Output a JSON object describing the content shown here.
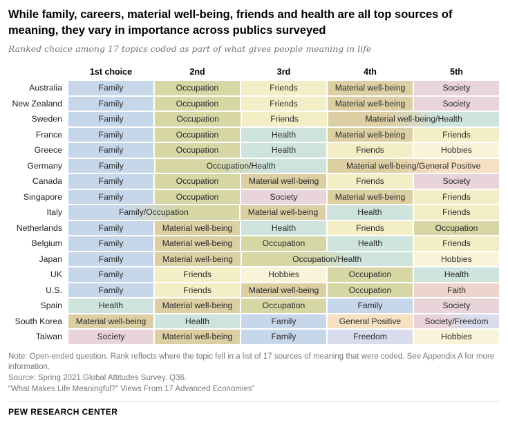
{
  "header": {
    "title": "While family, careers, material well-being, friends and health are all top sources of meaning, they vary in importance across publics surveyed",
    "subtitle": "Ranked choice among 17 topics coded as part of what gives people meaning in life"
  },
  "chart_data": {
    "type": "table",
    "columns": [
      "1st choice",
      "2nd",
      "3rd",
      "4th",
      "5th"
    ],
    "palette": {
      "Family": "#c7d7ea",
      "Occupation": "#d7d6a5",
      "Friends": "#f4eec6",
      "Material well-being": "#dccfa3",
      "Society": "#e9d4d9",
      "Health": "#cde3db",
      "Hobbies": "#f8f3d9",
      "Faith": "#edd5cb",
      "Freedom": "#d8dcec",
      "General Positive": "#f6e0c3"
    },
    "rows": [
      {
        "country": "Australia",
        "cells": [
          {
            "label": "Family",
            "span": 1,
            "topics": [
              "Family"
            ]
          },
          {
            "label": "Occupation",
            "span": 1,
            "topics": [
              "Occupation"
            ]
          },
          {
            "label": "Friends",
            "span": 1,
            "topics": [
              "Friends"
            ]
          },
          {
            "label": "Material well-being",
            "span": 1,
            "topics": [
              "Material well-being"
            ]
          },
          {
            "label": "Society",
            "span": 1,
            "topics": [
              "Society"
            ]
          }
        ]
      },
      {
        "country": "New Zealand",
        "cells": [
          {
            "label": "Family",
            "span": 1,
            "topics": [
              "Family"
            ]
          },
          {
            "label": "Occupation",
            "span": 1,
            "topics": [
              "Occupation"
            ]
          },
          {
            "label": "Friends",
            "span": 1,
            "topics": [
              "Friends"
            ]
          },
          {
            "label": "Material well-being",
            "span": 1,
            "topics": [
              "Material well-being"
            ]
          },
          {
            "label": "Society",
            "span": 1,
            "topics": [
              "Society"
            ]
          }
        ]
      },
      {
        "country": "Sweden",
        "cells": [
          {
            "label": "Family",
            "span": 1,
            "topics": [
              "Family"
            ]
          },
          {
            "label": "Occupation",
            "span": 1,
            "topics": [
              "Occupation"
            ]
          },
          {
            "label": "Friends",
            "span": 1,
            "topics": [
              "Friends"
            ]
          },
          {
            "label": "Material well-being/Health",
            "span": 2,
            "topics": [
              "Material well-being",
              "Health"
            ]
          }
        ]
      },
      {
        "country": "France",
        "cells": [
          {
            "label": "Family",
            "span": 1,
            "topics": [
              "Family"
            ]
          },
          {
            "label": "Occupation",
            "span": 1,
            "topics": [
              "Occupation"
            ]
          },
          {
            "label": "Health",
            "span": 1,
            "topics": [
              "Health"
            ]
          },
          {
            "label": "Material well-being",
            "span": 1,
            "topics": [
              "Material well-being"
            ]
          },
          {
            "label": "Friends",
            "span": 1,
            "topics": [
              "Friends"
            ]
          }
        ]
      },
      {
        "country": "Greece",
        "cells": [
          {
            "label": "Family",
            "span": 1,
            "topics": [
              "Family"
            ]
          },
          {
            "label": "Occupation",
            "span": 1,
            "topics": [
              "Occupation"
            ]
          },
          {
            "label": "Health",
            "span": 1,
            "topics": [
              "Health"
            ]
          },
          {
            "label": "Friends",
            "span": 1,
            "topics": [
              "Friends"
            ]
          },
          {
            "label": "Hobbies",
            "span": 1,
            "topics": [
              "Hobbies"
            ]
          }
        ]
      },
      {
        "country": "Germany",
        "cells": [
          {
            "label": "Family",
            "span": 1,
            "topics": [
              "Family"
            ]
          },
          {
            "label": "Occupation/Health",
            "span": 2,
            "topics": [
              "Occupation",
              "Health"
            ]
          },
          {
            "label": "Material well-being/General Positive",
            "span": 2,
            "topics": [
              "Material well-being",
              "General Positive"
            ]
          }
        ]
      },
      {
        "country": "Canada",
        "cells": [
          {
            "label": "Family",
            "span": 1,
            "topics": [
              "Family"
            ]
          },
          {
            "label": "Occupation",
            "span": 1,
            "topics": [
              "Occupation"
            ]
          },
          {
            "label": "Material well-being",
            "span": 1,
            "topics": [
              "Material well-being"
            ]
          },
          {
            "label": "Friends",
            "span": 1,
            "topics": [
              "Friends"
            ]
          },
          {
            "label": "Society",
            "span": 1,
            "topics": [
              "Society"
            ]
          }
        ]
      },
      {
        "country": "Singapore",
        "cells": [
          {
            "label": "Family",
            "span": 1,
            "topics": [
              "Family"
            ]
          },
          {
            "label": "Occupation",
            "span": 1,
            "topics": [
              "Occupation"
            ]
          },
          {
            "label": "Society",
            "span": 1,
            "topics": [
              "Society"
            ]
          },
          {
            "label": "Material well-being",
            "span": 1,
            "topics": [
              "Material well-being"
            ]
          },
          {
            "label": "Friends",
            "span": 1,
            "topics": [
              "Friends"
            ]
          }
        ]
      },
      {
        "country": "Italy",
        "cells": [
          {
            "label": "Family/Occupation",
            "span": 2,
            "topics": [
              "Family",
              "Occupation"
            ]
          },
          {
            "label": "Material well-being",
            "span": 1,
            "topics": [
              "Material well-being"
            ]
          },
          {
            "label": "Health",
            "span": 1,
            "topics": [
              "Health"
            ]
          },
          {
            "label": "Friends",
            "span": 1,
            "topics": [
              "Friends"
            ]
          }
        ]
      },
      {
        "country": "Netherlands",
        "cells": [
          {
            "label": "Family",
            "span": 1,
            "topics": [
              "Family"
            ]
          },
          {
            "label": "Material well-being",
            "span": 1,
            "topics": [
              "Material well-being"
            ]
          },
          {
            "label": "Health",
            "span": 1,
            "topics": [
              "Health"
            ]
          },
          {
            "label": "Friends",
            "span": 1,
            "topics": [
              "Friends"
            ]
          },
          {
            "label": "Occupation",
            "span": 1,
            "topics": [
              "Occupation"
            ]
          }
        ]
      },
      {
        "country": "Belgium",
        "cells": [
          {
            "label": "Family",
            "span": 1,
            "topics": [
              "Family"
            ]
          },
          {
            "label": "Material well-being",
            "span": 1,
            "topics": [
              "Material well-being"
            ]
          },
          {
            "label": "Occupation",
            "span": 1,
            "topics": [
              "Occupation"
            ]
          },
          {
            "label": "Health",
            "span": 1,
            "topics": [
              "Health"
            ]
          },
          {
            "label": "Friends",
            "span": 1,
            "topics": [
              "Friends"
            ]
          }
        ]
      },
      {
        "country": "Japan",
        "cells": [
          {
            "label": "Family",
            "span": 1,
            "topics": [
              "Family"
            ]
          },
          {
            "label": "Material well-being",
            "span": 1,
            "topics": [
              "Material well-being"
            ]
          },
          {
            "label": "Occupation/Health",
            "span": 2,
            "topics": [
              "Occupation",
              "Health"
            ]
          },
          {
            "label": "Hobbies",
            "span": 1,
            "topics": [
              "Hobbies"
            ]
          }
        ]
      },
      {
        "country": "UK",
        "cells": [
          {
            "label": "Family",
            "span": 1,
            "topics": [
              "Family"
            ]
          },
          {
            "label": "Friends",
            "span": 1,
            "topics": [
              "Friends"
            ]
          },
          {
            "label": "Hobbies",
            "span": 1,
            "topics": [
              "Hobbies"
            ]
          },
          {
            "label": "Occupation",
            "span": 1,
            "topics": [
              "Occupation"
            ]
          },
          {
            "label": "Health",
            "span": 1,
            "topics": [
              "Health"
            ]
          }
        ]
      },
      {
        "country": "U.S.",
        "cells": [
          {
            "label": "Family",
            "span": 1,
            "topics": [
              "Family"
            ]
          },
          {
            "label": "Friends",
            "span": 1,
            "topics": [
              "Friends"
            ]
          },
          {
            "label": "Material well-being",
            "span": 1,
            "topics": [
              "Material well-being"
            ]
          },
          {
            "label": "Occupation",
            "span": 1,
            "topics": [
              "Occupation"
            ]
          },
          {
            "label": "Faith",
            "span": 1,
            "topics": [
              "Faith"
            ]
          }
        ]
      },
      {
        "country": "Spain",
        "cells": [
          {
            "label": "Health",
            "span": 1,
            "topics": [
              "Health"
            ]
          },
          {
            "label": "Material well-being",
            "span": 1,
            "topics": [
              "Material well-being"
            ]
          },
          {
            "label": "Occupation",
            "span": 1,
            "topics": [
              "Occupation"
            ]
          },
          {
            "label": "Family",
            "span": 1,
            "topics": [
              "Family"
            ]
          },
          {
            "label": "Society",
            "span": 1,
            "topics": [
              "Society"
            ]
          }
        ]
      },
      {
        "country": "South Korea",
        "cells": [
          {
            "label": "Material well-being",
            "span": 1,
            "topics": [
              "Material well-being"
            ]
          },
          {
            "label": "Health",
            "span": 1,
            "topics": [
              "Health"
            ]
          },
          {
            "label": "Family",
            "span": 1,
            "topics": [
              "Family"
            ]
          },
          {
            "label": "General Positive",
            "span": 1,
            "topics": [
              "General Positive"
            ]
          },
          {
            "label": "Society/Freedom",
            "span": 1,
            "topics": [
              "Society",
              "Freedom"
            ]
          }
        ]
      },
      {
        "country": "Taiwan",
        "cells": [
          {
            "label": "Society",
            "span": 1,
            "topics": [
              "Society"
            ]
          },
          {
            "label": "Material well-being",
            "span": 1,
            "topics": [
              "Material well-being"
            ]
          },
          {
            "label": "Family",
            "span": 1,
            "topics": [
              "Family"
            ]
          },
          {
            "label": "Freedom",
            "span": 1,
            "topics": [
              "Freedom"
            ]
          },
          {
            "label": "Hobbies",
            "span": 1,
            "topics": [
              "Hobbies"
            ]
          }
        ]
      }
    ]
  },
  "footer": {
    "note": "Note: Open-ended question. Rank reflects where the topic fell in a list of 17 sources of meaning that were coded. See Appendix A for more information.",
    "source": "Source: Spring 2021 Global Attitudes Survey. Q36.",
    "report": "“What Makes Life Meaningful?” Views From 17 Advanced Economies”",
    "brand": "PEW RESEARCH CENTER"
  }
}
